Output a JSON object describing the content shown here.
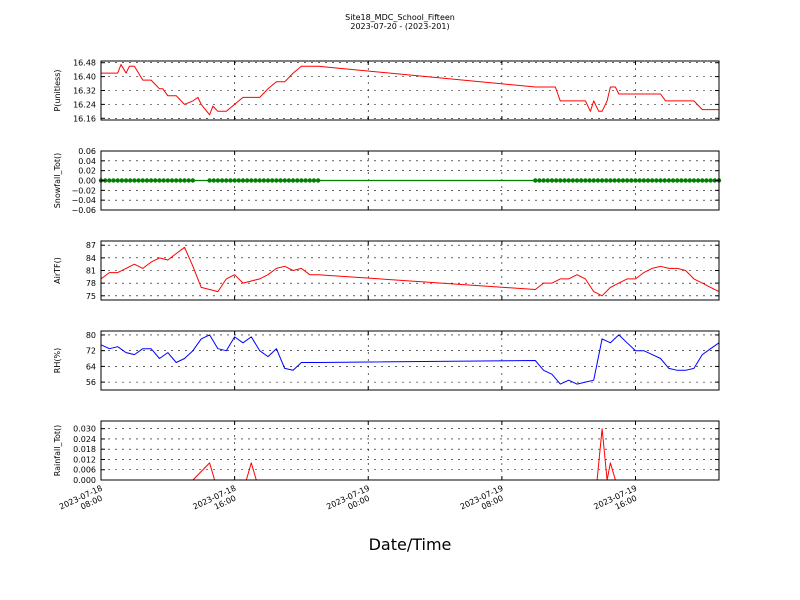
{
  "title": "Site18_MDC_School_Fifteen",
  "subtitle": "2023-07-20 - (2023-201)",
  "xlabel": "Date/Time",
  "colors": {
    "red": "#ff0000",
    "green": "#008000",
    "blue": "#0000ff",
    "axis": "#000000"
  },
  "chart_data": [
    {
      "type": "line",
      "ylabel": "P(unitless)",
      "ylim": [
        16.15,
        16.49
      ],
      "yticks": [
        16.16,
        16.24,
        16.32,
        16.4,
        16.48
      ],
      "ytick_labels": [
        "16.16",
        "16.24",
        "16.32",
        "16.40",
        "16.48"
      ],
      "grid": true,
      "series": [
        {
          "color": "#ff0000",
          "marker": "none",
          "x": [
            0,
            0.5,
            1.0,
            1.2,
            1.5,
            1.7,
            2.0,
            2.5,
            3.0,
            3.5,
            3.7,
            4.0,
            4.5,
            5.0,
            5.5,
            5.8,
            6.0,
            6.5,
            6.7,
            7.0,
            7.5,
            8.0,
            8.5,
            9.0,
            9.5,
            10.0,
            10.5,
            11.0,
            11.5,
            12.0,
            12.5,
            13.0,
            26.0,
            27.0,
            27.2,
            27.5,
            28.0,
            29.0,
            29.3,
            29.5,
            29.8,
            30.0,
            30.3,
            30.5,
            30.8,
            31.0,
            31.5,
            32.0,
            33.0,
            33.5,
            33.8,
            34.0,
            35.0,
            35.5,
            36.0,
            37.0
          ],
          "y": [
            16.42,
            16.42,
            16.42,
            16.47,
            16.42,
            16.46,
            16.46,
            16.38,
            16.38,
            16.33,
            16.33,
            16.29,
            16.29,
            16.24,
            16.26,
            16.28,
            16.24,
            16.18,
            16.23,
            16.2,
            16.2,
            16.24,
            16.28,
            16.28,
            16.28,
            16.33,
            16.37,
            16.37,
            16.42,
            16.46,
            16.46,
            16.46,
            16.34,
            16.34,
            16.34,
            16.26,
            16.26,
            16.26,
            16.2,
            16.26,
            16.2,
            16.2,
            16.26,
            16.34,
            16.34,
            16.3,
            16.3,
            16.3,
            16.3,
            16.3,
            16.26,
            16.26,
            16.26,
            16.26,
            16.21,
            16.21
          ]
        }
      ]
    },
    {
      "type": "line",
      "ylabel": "Snowfall_Tot()",
      "ylim": [
        -0.06,
        0.06
      ],
      "yticks": [
        -0.06,
        -0.04,
        -0.02,
        0.0,
        0.02,
        0.04,
        0.06
      ],
      "ytick_labels": [
        "−0.06",
        "−0.04",
        "−0.02",
        "0.00",
        "0.02",
        "0.04",
        "0.06"
      ],
      "grid": true,
      "series": [
        {
          "color": "#008000",
          "marker": "dot",
          "x": [
            0,
            0.25,
            0.5,
            0.75,
            1.0,
            1.25,
            1.5,
            1.75,
            2.0,
            2.25,
            2.5,
            2.75,
            3.0,
            3.25,
            3.5,
            3.75,
            4.0,
            4.25,
            4.5,
            4.75,
            5.0,
            5.25,
            5.5,
            6.5,
            6.75,
            7.0,
            7.25,
            7.5,
            7.75,
            8.0,
            8.25,
            8.5,
            8.75,
            9.0,
            9.25,
            9.5,
            9.75,
            10.0,
            10.25,
            10.5,
            10.75,
            11.0,
            11.25,
            11.5,
            11.75,
            12.0,
            12.25,
            12.5,
            12.75,
            13.0,
            26.0,
            26.25,
            26.5,
            26.75,
            27.0,
            27.25,
            27.5,
            27.75,
            28.0,
            28.25,
            28.5,
            28.75,
            29.0,
            29.25,
            29.5,
            29.75,
            30.0,
            30.25,
            30.5,
            30.75,
            31.0,
            31.25,
            31.5,
            31.75,
            32.0,
            32.25,
            32.5,
            32.75,
            33.0,
            33.25,
            33.5,
            33.75,
            34.0,
            34.25,
            34.5,
            34.75,
            35.0,
            35.25,
            35.5,
            35.75,
            36.0,
            36.25,
            36.5,
            36.75,
            37.0
          ],
          "y": [
            0,
            0,
            0,
            0,
            0,
            0,
            0,
            0,
            0,
            0,
            0,
            0,
            0,
            0,
            0,
            0,
            0,
            0,
            0,
            0,
            0,
            0,
            0,
            0,
            0,
            0,
            0,
            0,
            0,
            0,
            0,
            0,
            0,
            0,
            0,
            0,
            0,
            0,
            0,
            0,
            0,
            0,
            0,
            0,
            0,
            0,
            0,
            0,
            0,
            0,
            0,
            0,
            0,
            0,
            0,
            0,
            0,
            0,
            0,
            0,
            0,
            0,
            0,
            0,
            0,
            0,
            0,
            0,
            0,
            0,
            0,
            0,
            0,
            0,
            0,
            0,
            0,
            0,
            0,
            0,
            0,
            0,
            0,
            0,
            0,
            0,
            0,
            0,
            0,
            0,
            0,
            0,
            0,
            0,
            0
          ],
          "line_x": [
            0,
            37.0
          ],
          "line_y": [
            0,
            0
          ]
        }
      ]
    },
    {
      "type": "line",
      "ylabel": "AirTF()",
      "ylim": [
        74,
        88
      ],
      "yticks": [
        75,
        78,
        81,
        84,
        87
      ],
      "ytick_labels": [
        "75",
        "78",
        "81",
        "84",
        "87"
      ],
      "grid": true,
      "series": [
        {
          "color": "#ff0000",
          "marker": "none",
          "x": [
            0,
            0.5,
            1.0,
            1.5,
            2.0,
            2.5,
            3.0,
            3.5,
            4.0,
            4.5,
            5.0,
            5.5,
            6.0,
            6.5,
            7.0,
            7.5,
            8.0,
            8.5,
            9.0,
            9.5,
            10.0,
            10.5,
            11.0,
            11.5,
            12.0,
            12.5,
            13.0,
            26.0,
            26.5,
            27.0,
            27.5,
            28.0,
            28.5,
            29.0,
            29.5,
            30.0,
            30.5,
            31.0,
            31.5,
            32.0,
            32.5,
            33.0,
            33.5,
            34.0,
            34.5,
            35.0,
            35.5,
            36.0,
            36.5,
            37.0
          ],
          "y": [
            79,
            80.5,
            80.5,
            81.5,
            82.5,
            81.5,
            83,
            84,
            83.5,
            85,
            86.5,
            82,
            77,
            76.5,
            76,
            79,
            80,
            78,
            78.5,
            79,
            80,
            81.5,
            82,
            81,
            81.5,
            80,
            80,
            76.5,
            78,
            78,
            79,
            79,
            80,
            79,
            76,
            75,
            77,
            78,
            79,
            79,
            80.5,
            81.5,
            82,
            81.5,
            81.5,
            81,
            79,
            78,
            77,
            76
          ]
        }
      ]
    },
    {
      "type": "line",
      "ylabel": "RH(%)",
      "ylim": [
        52,
        82
      ],
      "yticks": [
        56,
        64,
        72,
        80
      ],
      "ytick_labels": [
        "56",
        "64",
        "72",
        "80"
      ],
      "grid": true,
      "series": [
        {
          "color": "#0000ff",
          "marker": "none",
          "x": [
            0,
            0.5,
            1.0,
            1.5,
            2.0,
            2.5,
            3.0,
            3.5,
            4.0,
            4.5,
            5.0,
            5.5,
            6.0,
            6.5,
            7.0,
            7.5,
            8.0,
            8.5,
            9.0,
            9.5,
            10.0,
            10.5,
            11.0,
            11.5,
            12.0,
            12.5,
            13.0,
            26.0,
            26.5,
            27.0,
            27.5,
            28.0,
            28.5,
            29.0,
            29.5,
            30.0,
            30.5,
            31.0,
            31.5,
            32.0,
            32.5,
            33.0,
            33.5,
            34.0,
            34.5,
            35.0,
            35.5,
            36.0,
            36.5,
            37.0
          ],
          "y": [
            75,
            73,
            74,
            71,
            70,
            73,
            73,
            68,
            71,
            66,
            68,
            72,
            78,
            80,
            73,
            72,
            79,
            76,
            79,
            72,
            69,
            73,
            63,
            62,
            66,
            66,
            66,
            67,
            62,
            60,
            55,
            57,
            55,
            56,
            57,
            78,
            76,
            80,
            76,
            72,
            72,
            70,
            68,
            63,
            62,
            62,
            63,
            70,
            73,
            76
          ]
        }
      ]
    },
    {
      "type": "line",
      "ylabel": "Rainfall_Tot()",
      "ylim": [
        0,
        0.0345
      ],
      "yticks": [
        0.0,
        0.006,
        0.012,
        0.018,
        0.024,
        0.03
      ],
      "ytick_labels": [
        "0.000",
        "0.006",
        "0.012",
        "0.018",
        "0.024",
        "0.030"
      ],
      "grid": true,
      "series": [
        {
          "color": "#ff0000",
          "marker": "none",
          "x": [
            0,
            5.5,
            6.5,
            6.8,
            8.7,
            9.0,
            9.3,
            29.7,
            30.0,
            30.3,
            30.5,
            30.8,
            37.0
          ],
          "y": [
            0,
            0,
            0.01,
            0,
            0,
            0.01,
            0,
            0,
            0.03,
            0,
            0.01,
            0,
            0
          ]
        }
      ]
    }
  ],
  "xticks": [
    0,
    8,
    16,
    24,
    32
  ],
  "xtick_labels": [
    [
      "2023-07-18",
      "08:00"
    ],
    [
      "2023-07-18",
      "16:00"
    ],
    [
      "2023-07-19",
      "00:00"
    ],
    [
      "2023-07-19",
      "08:00"
    ],
    [
      "2023-07-19",
      "16:00"
    ]
  ],
  "xlim": [
    0,
    37.0
  ]
}
